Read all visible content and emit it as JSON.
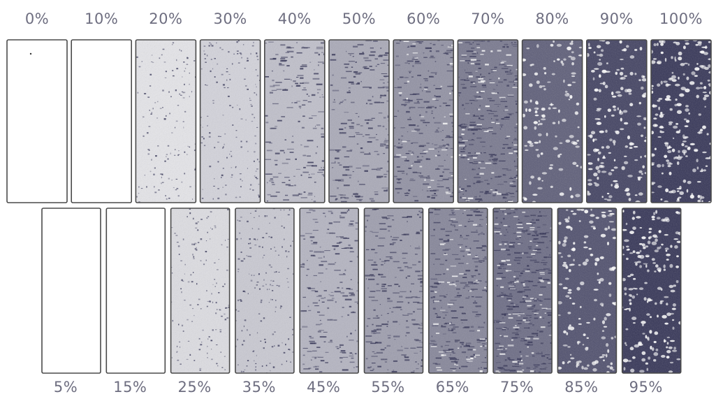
{
  "chart_data": {
    "type": "table",
    "rows": [
      {
        "name": "top",
        "labels": [
          "0%",
          "10%",
          "20%",
          "30%",
          "40%",
          "50%",
          "60%",
          "70%",
          "80%",
          "90%",
          "100%"
        ],
        "values": [
          0,
          10,
          20,
          30,
          40,
          50,
          60,
          70,
          80,
          90,
          100
        ]
      },
      {
        "name": "bottom",
        "labels": [
          "5%",
          "15%",
          "25%",
          "35%",
          "45%",
          "55%",
          "65%",
          "75%",
          "85%",
          "95%"
        ],
        "values": [
          5,
          15,
          25,
          35,
          45,
          55,
          65,
          75,
          85,
          95
        ]
      }
    ],
    "colors": {
      "ink": "#2a2a4e",
      "label": "#6e6e80",
      "border": "#4a4a4a"
    }
  }
}
